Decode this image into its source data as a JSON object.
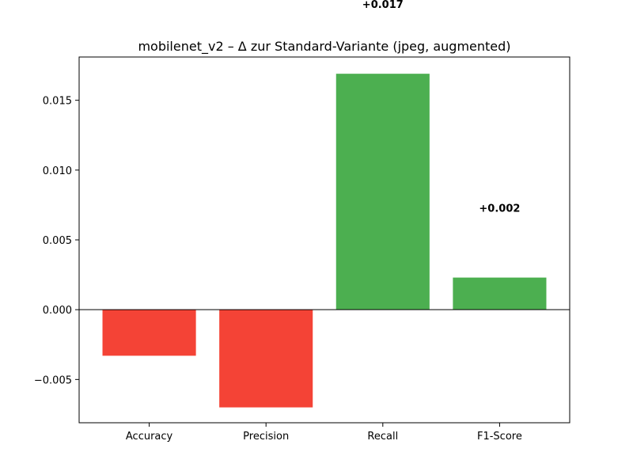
{
  "chart_data": {
    "type": "bar",
    "title": "mobilenet_v2 – Δ zur Standard-Variante (jpeg, augmented)",
    "xlabel": "",
    "ylabel": "",
    "categories": [
      "Accuracy",
      "Precision",
      "Recall",
      "F1-Score"
    ],
    "values": [
      -0.0033,
      -0.007,
      0.0169,
      0.0023
    ],
    "data_labels": [
      "",
      "",
      "+0.017",
      "+0.002"
    ],
    "ylim": [
      -0.0081,
      0.0181
    ],
    "yticks": [
      -0.005,
      0.0,
      0.005,
      0.01,
      0.015
    ],
    "ytick_labels": [
      "−0.005",
      "0.000",
      "0.005",
      "0.010",
      "0.015"
    ],
    "grid": false,
    "colors": {
      "positive": "#4caf50",
      "negative": "#f44336",
      "zero_line": "#000000"
    }
  }
}
